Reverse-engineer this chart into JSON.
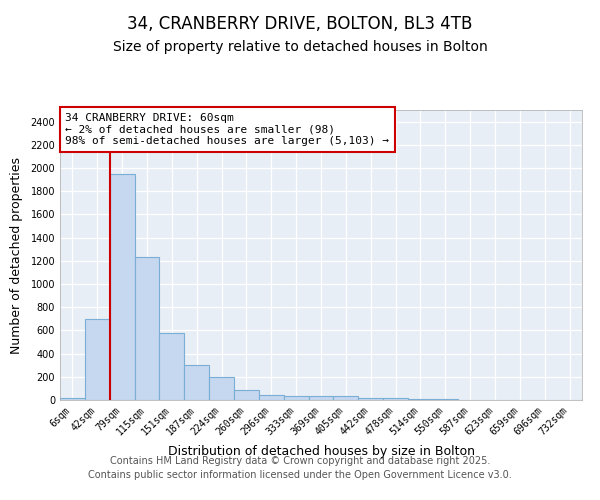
{
  "title": "34, CRANBERRY DRIVE, BOLTON, BL3 4TB",
  "subtitle": "Size of property relative to detached houses in Bolton",
  "xlabel": "Distribution of detached houses by size in Bolton",
  "ylabel": "Number of detached properties",
  "bar_labels": [
    "6sqm",
    "42sqm",
    "79sqm",
    "115sqm",
    "151sqm",
    "187sqm",
    "224sqm",
    "260sqm",
    "296sqm",
    "333sqm",
    "369sqm",
    "405sqm",
    "442sqm",
    "478sqm",
    "514sqm",
    "550sqm",
    "587sqm",
    "623sqm",
    "659sqm",
    "696sqm",
    "732sqm"
  ],
  "bar_values": [
    20,
    700,
    1950,
    1230,
    580,
    305,
    200,
    85,
    45,
    35,
    35,
    35,
    20,
    15,
    10,
    5,
    4,
    3,
    3,
    2,
    2
  ],
  "bar_color": "#c5d8ef",
  "bar_edge_color": "#7aaed4",
  "vline_color": "#cc0000",
  "annotation_text": "34 CRANBERRY DRIVE: 60sqm\n← 2% of detached houses are smaller (98)\n98% of semi-detached houses are larger (5,103) →",
  "annotation_box_color": "#ffffff",
  "annotation_box_edge": "#cc0000",
  "ylim": [
    0,
    2500
  ],
  "yticks": [
    0,
    200,
    400,
    600,
    800,
    1000,
    1200,
    1400,
    1600,
    1800,
    2000,
    2200,
    2400
  ],
  "bg_color": "#ffffff",
  "plot_bg_color": "#e8eef5",
  "footer_line1": "Contains HM Land Registry data © Crown copyright and database right 2025.",
  "footer_line2": "Contains public sector information licensed under the Open Government Licence v3.0.",
  "title_fontsize": 12,
  "subtitle_fontsize": 10,
  "tick_fontsize": 7,
  "label_fontsize": 9,
  "footer_fontsize": 7
}
